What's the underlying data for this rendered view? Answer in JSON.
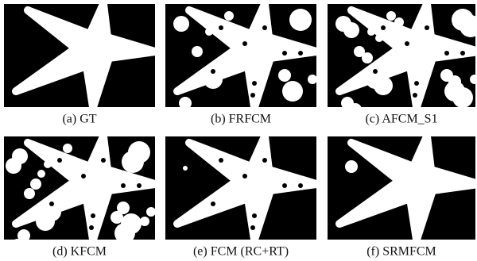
{
  "figure": {
    "panels": [
      {
        "caption": "(a) GT"
      },
      {
        "caption": "(b) FRFCM"
      },
      {
        "caption": "(c) AFCM_S1"
      },
      {
        "caption": "(d) KFCM"
      },
      {
        "caption": "(e) FCM (RC+RT)"
      },
      {
        "caption": "(f) SRMFCM"
      }
    ]
  }
}
